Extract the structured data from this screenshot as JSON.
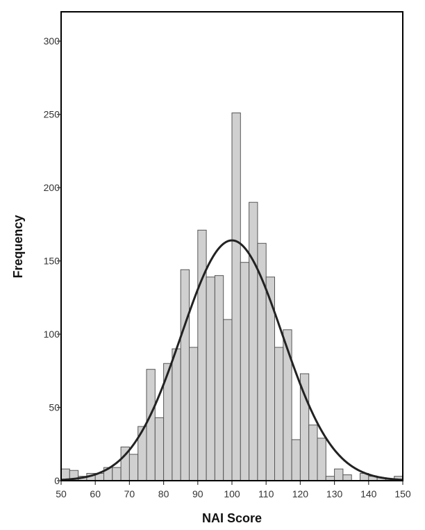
{
  "chart_data": {
    "type": "bar",
    "xlabel": "NAI Score",
    "ylabel": "Frequency",
    "xlim": [
      50,
      150
    ],
    "ylim": [
      0,
      320
    ],
    "x_ticks": [
      50,
      60,
      70,
      80,
      90,
      100,
      110,
      120,
      130,
      140,
      150
    ],
    "y_ticks": [
      0,
      50,
      100,
      150,
      200,
      250,
      300
    ],
    "bin_width": 2.5,
    "bins": [
      {
        "start": 50.0,
        "value": 8
      },
      {
        "start": 52.5,
        "value": 7
      },
      {
        "start": 55.0,
        "value": 3
      },
      {
        "start": 57.5,
        "value": 5
      },
      {
        "start": 60.0,
        "value": 5
      },
      {
        "start": 62.5,
        "value": 9
      },
      {
        "start": 65.0,
        "value": 9
      },
      {
        "start": 67.5,
        "value": 23
      },
      {
        "start": 70.0,
        "value": 18
      },
      {
        "start": 72.5,
        "value": 37
      },
      {
        "start": 75.0,
        "value": 76
      },
      {
        "start": 77.5,
        "value": 43
      },
      {
        "start": 80.0,
        "value": 80
      },
      {
        "start": 82.5,
        "value": 90
      },
      {
        "start": 85.0,
        "value": 144
      },
      {
        "start": 87.5,
        "value": 91
      },
      {
        "start": 90.0,
        "value": 171
      },
      {
        "start": 92.5,
        "value": 139
      },
      {
        "start": 95.0,
        "value": 140
      },
      {
        "start": 97.5,
        "value": 110
      },
      {
        "start": 100.0,
        "value": 251
      },
      {
        "start": 102.5,
        "value": 149
      },
      {
        "start": 105.0,
        "value": 190
      },
      {
        "start": 107.5,
        "value": 162
      },
      {
        "start": 110.0,
        "value": 139
      },
      {
        "start": 112.5,
        "value": 91
      },
      {
        "start": 115.0,
        "value": 103
      },
      {
        "start": 117.5,
        "value": 28
      },
      {
        "start": 120.0,
        "value": 73
      },
      {
        "start": 122.5,
        "value": 38
      },
      {
        "start": 125.0,
        "value": 29
      },
      {
        "start": 127.5,
        "value": 3
      },
      {
        "start": 130.0,
        "value": 8
      },
      {
        "start": 132.5,
        "value": 4
      },
      {
        "start": 135.0,
        "value": 0
      },
      {
        "start": 137.5,
        "value": 5
      },
      {
        "start": 140.0,
        "value": 3
      },
      {
        "start": 142.5,
        "value": 2
      },
      {
        "start": 145.0,
        "value": 1
      },
      {
        "start": 147.5,
        "value": 3
      }
    ],
    "normal_curve": {
      "mean": 100,
      "sd": 14.8,
      "peak": 164
    },
    "grid": false,
    "legend": "none"
  }
}
